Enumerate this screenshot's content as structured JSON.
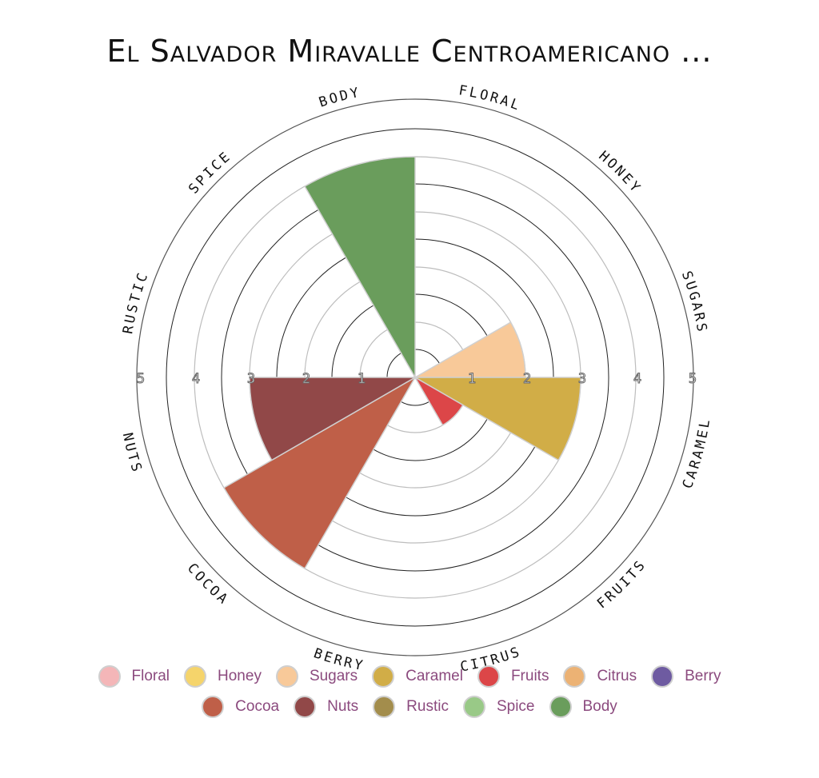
{
  "title": "El Salvador Miravalle Centroamericano ...",
  "chart_data": {
    "type": "polar-area",
    "title": "El Salvador Miravalle Centroamericano ...",
    "radial_range": [
      0,
      5
    ],
    "radial_ticks": [
      "1",
      "2",
      "3",
      "4",
      "5"
    ],
    "categories": [
      {
        "name": "Floral",
        "label": "FLORAL",
        "value": 0,
        "color": "#f4b6b8"
      },
      {
        "name": "Honey",
        "label": "HONEY",
        "value": 0,
        "color": "#f5d46b"
      },
      {
        "name": "Sugars",
        "label": "SUGARS",
        "value": 2,
        "color": "#f8c999"
      },
      {
        "name": "Caramel",
        "label": "CARAMEL",
        "value": 3,
        "color": "#d1ad47"
      },
      {
        "name": "Fruits",
        "label": "FRUITS",
        "value": 1,
        "color": "#dc4648"
      },
      {
        "name": "Citrus",
        "label": "CITRUS",
        "value": 0,
        "color": "#ecb274"
      },
      {
        "name": "Berry",
        "label": "BERRY",
        "value": 0,
        "color": "#6e5ba1"
      },
      {
        "name": "Cocoa",
        "label": "COCOA",
        "value": 4,
        "color": "#bf5f48"
      },
      {
        "name": "Nuts",
        "label": "NUTS",
        "value": 3,
        "color": "#914848"
      },
      {
        "name": "Rustic",
        "label": "RUSTIC",
        "value": 0,
        "color": "#a38d4c"
      },
      {
        "name": "Spice",
        "label": "SPICE",
        "value": 0,
        "color": "#99c987"
      },
      {
        "name": "Body",
        "label": "BODY",
        "value": 4,
        "color": "#6a9d5c"
      }
    ]
  },
  "legend": {
    "rows": [
      [
        "Floral",
        "Honey",
        "Sugars",
        "Caramel",
        "Fruits",
        "Citrus",
        "Berry"
      ],
      [
        "Cocoa",
        "Nuts",
        "Rustic",
        "Spice",
        "Body"
      ]
    ]
  }
}
